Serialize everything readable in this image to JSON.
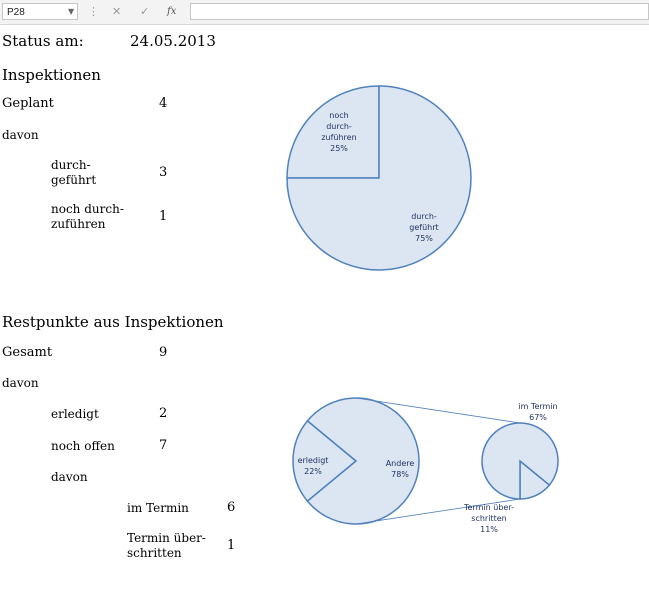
{
  "formula_bar": {
    "name_box": "P28",
    "cancel_icon": "✕",
    "enter_icon": "✓",
    "fx_label": "fx",
    "formula_value": ""
  },
  "status": {
    "label": "Status am:",
    "date": "24.05.2013"
  },
  "inspektionen": {
    "title": "Inspektionen",
    "geplant_label": "Geplant",
    "geplant_value": "4",
    "davon_label": "davon",
    "durchgefuehrt_label": "durch-\ngeführt",
    "durchgefuehrt_value": "3",
    "noch_label": "noch durch-\nzuführen",
    "noch_value": "1"
  },
  "restpunkte": {
    "title": "Restpunkte aus Inspektionen",
    "gesamt_label": "Gesamt",
    "gesamt_value": "9",
    "davon_label": "davon",
    "erledigt_label": "erledigt",
    "erledigt_value": "2",
    "offen_label": "noch offen",
    "offen_value": "7",
    "davon2_label": "davon",
    "imtermin_label": "im Termin",
    "imtermin_value": "6",
    "ueber_label": "Termin über-\nschritten",
    "ueber_value": "1"
  },
  "chart_data": [
    {
      "type": "pie",
      "categories": [
        "noch durch-zuführen",
        "durch-geführt"
      ],
      "values": [
        25,
        75
      ],
      "labels": [
        [
          "noch",
          "durch-",
          "zuführen",
          "25%"
        ],
        [
          "durch-",
          "geführt",
          "75%"
        ]
      ],
      "colors": {
        "fill": "#dce6f2",
        "stroke": "#4f81bd",
        "text": "#1f2f5f"
      }
    },
    {
      "type": "pie-of-pie",
      "categories": [
        "erledigt",
        "Andere"
      ],
      "values": [
        22,
        78
      ],
      "labels": [
        [
          "erledigt",
          "22%"
        ],
        [
          "Andere",
          "78%"
        ]
      ],
      "secondary": {
        "categories": [
          "im Termin",
          "Termin über-schritten"
        ],
        "values": [
          67,
          11
        ],
        "labels": [
          [
            "im Termin",
            "67%"
          ],
          [
            "Termin über-",
            "schritten",
            "11%"
          ]
        ]
      },
      "colors": {
        "fill": "#dce6f2",
        "stroke": "#4f81bd",
        "text": "#1f2f5f"
      }
    }
  ]
}
